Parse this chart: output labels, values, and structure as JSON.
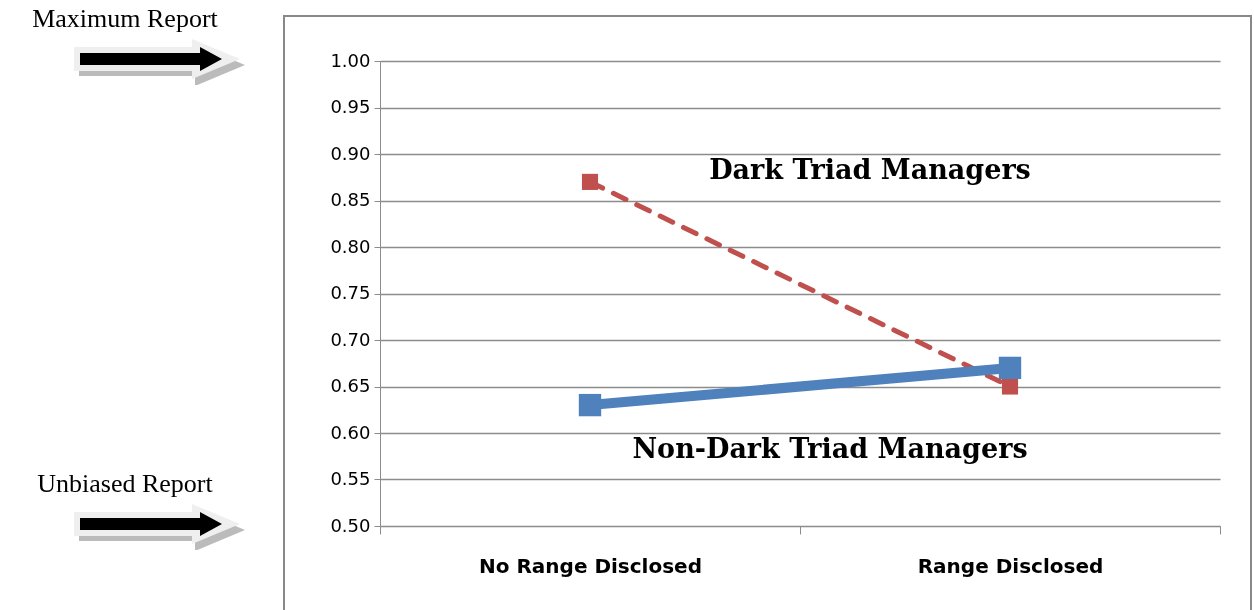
{
  "chart_data": {
    "type": "line",
    "categories": [
      "No Range Disclosed",
      "Range Disclosed"
    ],
    "series": [
      {
        "name": "Dark Triad Managers",
        "color": "#c0504d",
        "values": [
          0.87,
          0.65
        ],
        "line_style": "dashed"
      },
      {
        "name": "Non-Dark Triad Managers",
        "color": "#4f81bd",
        "values": [
          0.63,
          0.67
        ],
        "line_style": "solid"
      }
    ],
    "ylim": [
      0.5,
      1.0
    ],
    "yticks": [
      {
        "value": 0.5,
        "label": "0.50"
      },
      0.55,
      {
        "value": 0.6,
        "label": "0.60"
      },
      0.65,
      {
        "value": 0.7,
        "label": "0.70"
      },
      0.75,
      {
        "value": 0.8,
        "label": "0.80"
      },
      0.85,
      {
        "value": 0.9,
        "label": "0.90"
      },
      0.95,
      {
        "value": 1.0,
        "label": "1.00"
      }
    ],
    "grid": "y",
    "marker": "square",
    "annotations": [
      "Maximum Report",
      "Unbiased Report"
    ]
  }
}
